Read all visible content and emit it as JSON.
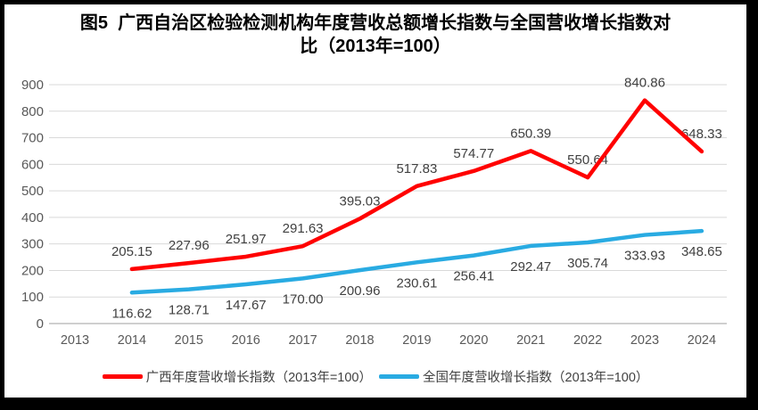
{
  "title_lines": [
    "图5  广西自治区检验检测机构年度营收总额增长指数与全国营收增长指数对",
    "比（2013年=100）"
  ],
  "chart_data": {
    "type": "line",
    "title": "图5 广西自治区检验检测机构年度营收总额增长指数与全国营收增长指数对比（2013年=100）",
    "categories": [
      "2013",
      "2014",
      "2015",
      "2016",
      "2017",
      "2018",
      "2019",
      "2020",
      "2021",
      "2022",
      "2023",
      "2024"
    ],
    "yticks": [
      0,
      100,
      200,
      300,
      400,
      500,
      600,
      700,
      800,
      900
    ],
    "ylim": [
      0,
      900
    ],
    "grid": true,
    "legend_position": "bottom",
    "series": [
      {
        "name": "广西年度营收增长指数（2013年=100）",
        "color": "#FF0000",
        "label_position": "above",
        "values": [
          null,
          205.15,
          227.96,
          251.97,
          291.63,
          395.03,
          517.83,
          574.77,
          650.39,
          550.64,
          840.86,
          648.33
        ],
        "labels": [
          "",
          "205.15",
          "227.96",
          "251.97",
          "291.63",
          "395.03",
          "517.83",
          "574.77",
          "650.39",
          "550.64",
          "840.86",
          "648.33"
        ]
      },
      {
        "name": "全国年度营收增长指数（2013年=100）",
        "color": "#29ABE2",
        "label_position": "below",
        "values": [
          null,
          116.62,
          128.71,
          147.67,
          170.0,
          200.96,
          230.61,
          256.41,
          292.47,
          305.74,
          333.93,
          348.65
        ],
        "labels": [
          "",
          "116.62",
          "128.71",
          "147.67",
          "170.00",
          "200.96",
          "230.61",
          "256.41",
          "292.47",
          "305.74",
          "333.93",
          "348.65"
        ]
      }
    ],
    "colors": {
      "gridline": "#D9D9D9",
      "axis_line": "#BFBFBF",
      "axis_text": "#595959",
      "label_text": "#404040",
      "title_text": "#000000",
      "background": "#FFFFFF",
      "frame_border": "#000000"
    }
  }
}
